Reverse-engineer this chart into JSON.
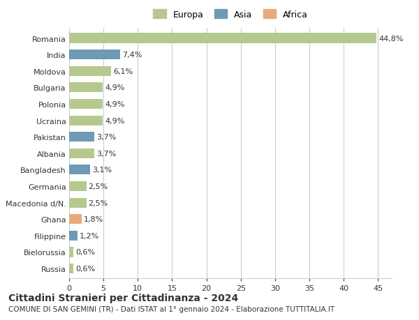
{
  "countries": [
    "Romania",
    "India",
    "Moldova",
    "Bulgaria",
    "Polonia",
    "Ucraina",
    "Pakistan",
    "Albania",
    "Bangladesh",
    "Germania",
    "Macedonia d/N.",
    "Ghana",
    "Filippine",
    "Bielorussia",
    "Russia"
  ],
  "values": [
    44.8,
    7.4,
    6.1,
    4.9,
    4.9,
    4.9,
    3.7,
    3.7,
    3.1,
    2.5,
    2.5,
    1.8,
    1.2,
    0.6,
    0.6
  ],
  "labels": [
    "44,8%",
    "7,4%",
    "6,1%",
    "4,9%",
    "4,9%",
    "4,9%",
    "3,7%",
    "3,7%",
    "3,1%",
    "2,5%",
    "2,5%",
    "1,8%",
    "1,2%",
    "0,6%",
    "0,6%"
  ],
  "continents": [
    "Europa",
    "Asia",
    "Europa",
    "Europa",
    "Europa",
    "Europa",
    "Asia",
    "Europa",
    "Asia",
    "Europa",
    "Europa",
    "Africa",
    "Asia",
    "Europa",
    "Europa"
  ],
  "colors": {
    "Europa": "#b5c98e",
    "Asia": "#6e9ab5",
    "Africa": "#e8aa7a"
  },
  "title": "Cittadini Stranieri per Cittadinanza - 2024",
  "subtitle": "COMUNE DI SAN GEMINI (TR) - Dati ISTAT al 1° gennaio 2024 - Elaborazione TUTTITALIA.IT",
  "xlim": [
    0,
    47
  ],
  "xticks": [
    0,
    5,
    10,
    15,
    20,
    25,
    30,
    35,
    40,
    45
  ],
  "background_color": "#ffffff",
  "bar_height": 0.6,
  "grid_color": "#cccccc",
  "text_color": "#333333",
  "title_fontsize": 10,
  "subtitle_fontsize": 7.5,
  "label_fontsize": 8,
  "tick_fontsize": 8,
  "legend_fontsize": 9
}
